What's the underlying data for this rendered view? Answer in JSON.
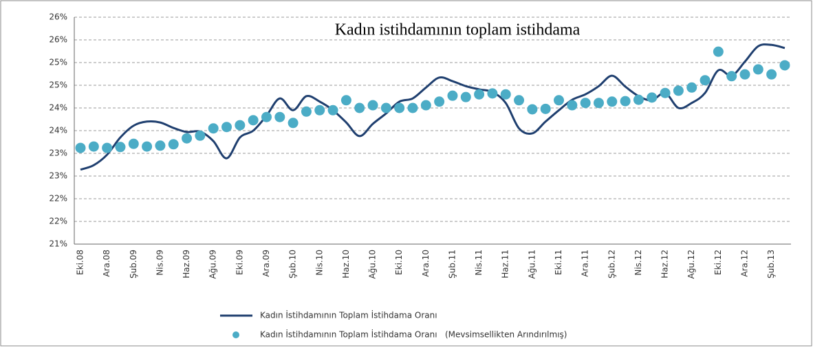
{
  "chart_data": {
    "type": "line",
    "title": "Kadın istihdamının toplam istihdama",
    "categories": [
      "Eki.08",
      null,
      "Ara.08",
      null,
      "Şub.09",
      null,
      "Nis.09",
      null,
      "Haz.09",
      null,
      "Ağu.09",
      null,
      "Eki.09",
      null,
      "Ara.09",
      null,
      "Şub.10",
      null,
      "Nis.10",
      null,
      "Haz.10",
      null,
      "Ağu.10",
      null,
      "Eki.10",
      null,
      "Ara.10",
      null,
      "Şub.11",
      null,
      "Nis.11",
      null,
      "Haz.11",
      null,
      "Ağu.11",
      null,
      "Eki.11",
      null,
      "Ara.11",
      null,
      "Şub.12",
      null,
      "Nis.12",
      null,
      "Haz.12",
      null,
      "Ağu.12",
      null,
      "Eki.12",
      null,
      "Ara.12",
      null,
      "Şub.13",
      null
    ],
    "series": [
      {
        "name": "Kadın İstihdamının Toplam İstihdama Oranı",
        "color": "#1f3f6f",
        "style": "line",
        "values": [
          22.64,
          22.74,
          22.97,
          23.35,
          23.61,
          23.7,
          23.68,
          23.56,
          23.47,
          23.48,
          23.27,
          22.89,
          23.35,
          23.5,
          23.83,
          24.21,
          23.95,
          24.26,
          24.14,
          23.95,
          23.68,
          23.38,
          23.65,
          23.88,
          24.14,
          24.21,
          24.45,
          24.67,
          24.59,
          24.48,
          24.41,
          24.35,
          24.11,
          23.55,
          23.44,
          23.7,
          23.95,
          24.18,
          24.3,
          24.48,
          24.71,
          24.47,
          24.26,
          24.17,
          24.33,
          24.0,
          24.11,
          24.33,
          24.83,
          24.71,
          25.02,
          25.36,
          25.39,
          25.32
        ]
      },
      {
        "name": "Kadın İstihdamının Toplam İstihdama Oranı   (Mevsimsellikten Arındırılmış)",
        "color": "#4bacc6",
        "style": "dots",
        "values": [
          23.12,
          23.15,
          23.12,
          23.14,
          23.21,
          23.15,
          23.17,
          23.2,
          23.33,
          23.39,
          23.55,
          23.58,
          23.62,
          23.73,
          23.8,
          23.8,
          23.67,
          23.92,
          23.95,
          23.95,
          24.17,
          24.0,
          24.06,
          24.0,
          24.0,
          24.0,
          24.06,
          24.14,
          24.27,
          24.24,
          24.3,
          24.32,
          24.3,
          24.17,
          23.97,
          23.98,
          24.17,
          24.06,
          24.11,
          24.11,
          24.14,
          24.15,
          24.18,
          24.23,
          24.33,
          24.38,
          24.45,
          24.61,
          25.24,
          24.7,
          24.74,
          24.85,
          24.74,
          24.94
        ]
      }
    ],
    "ylim": [
      21,
      26
    ],
    "yticks": [
      {
        "value": 21,
        "label": "21%"
      },
      {
        "value": 21.5,
        "label": "22%"
      },
      {
        "value": 22,
        "label": "22%"
      },
      {
        "value": 22.5,
        "label": "23%"
      },
      {
        "value": 23,
        "label": "23%"
      },
      {
        "value": 23.5,
        "label": "24%"
      },
      {
        "value": 24,
        "label": "24%"
      },
      {
        "value": 24.5,
        "label": "25%"
      },
      {
        "value": 25,
        "label": "25%"
      },
      {
        "value": 25.5,
        "label": "26%"
      },
      {
        "value": 26,
        "label": "26%"
      }
    ],
    "grid": true
  }
}
